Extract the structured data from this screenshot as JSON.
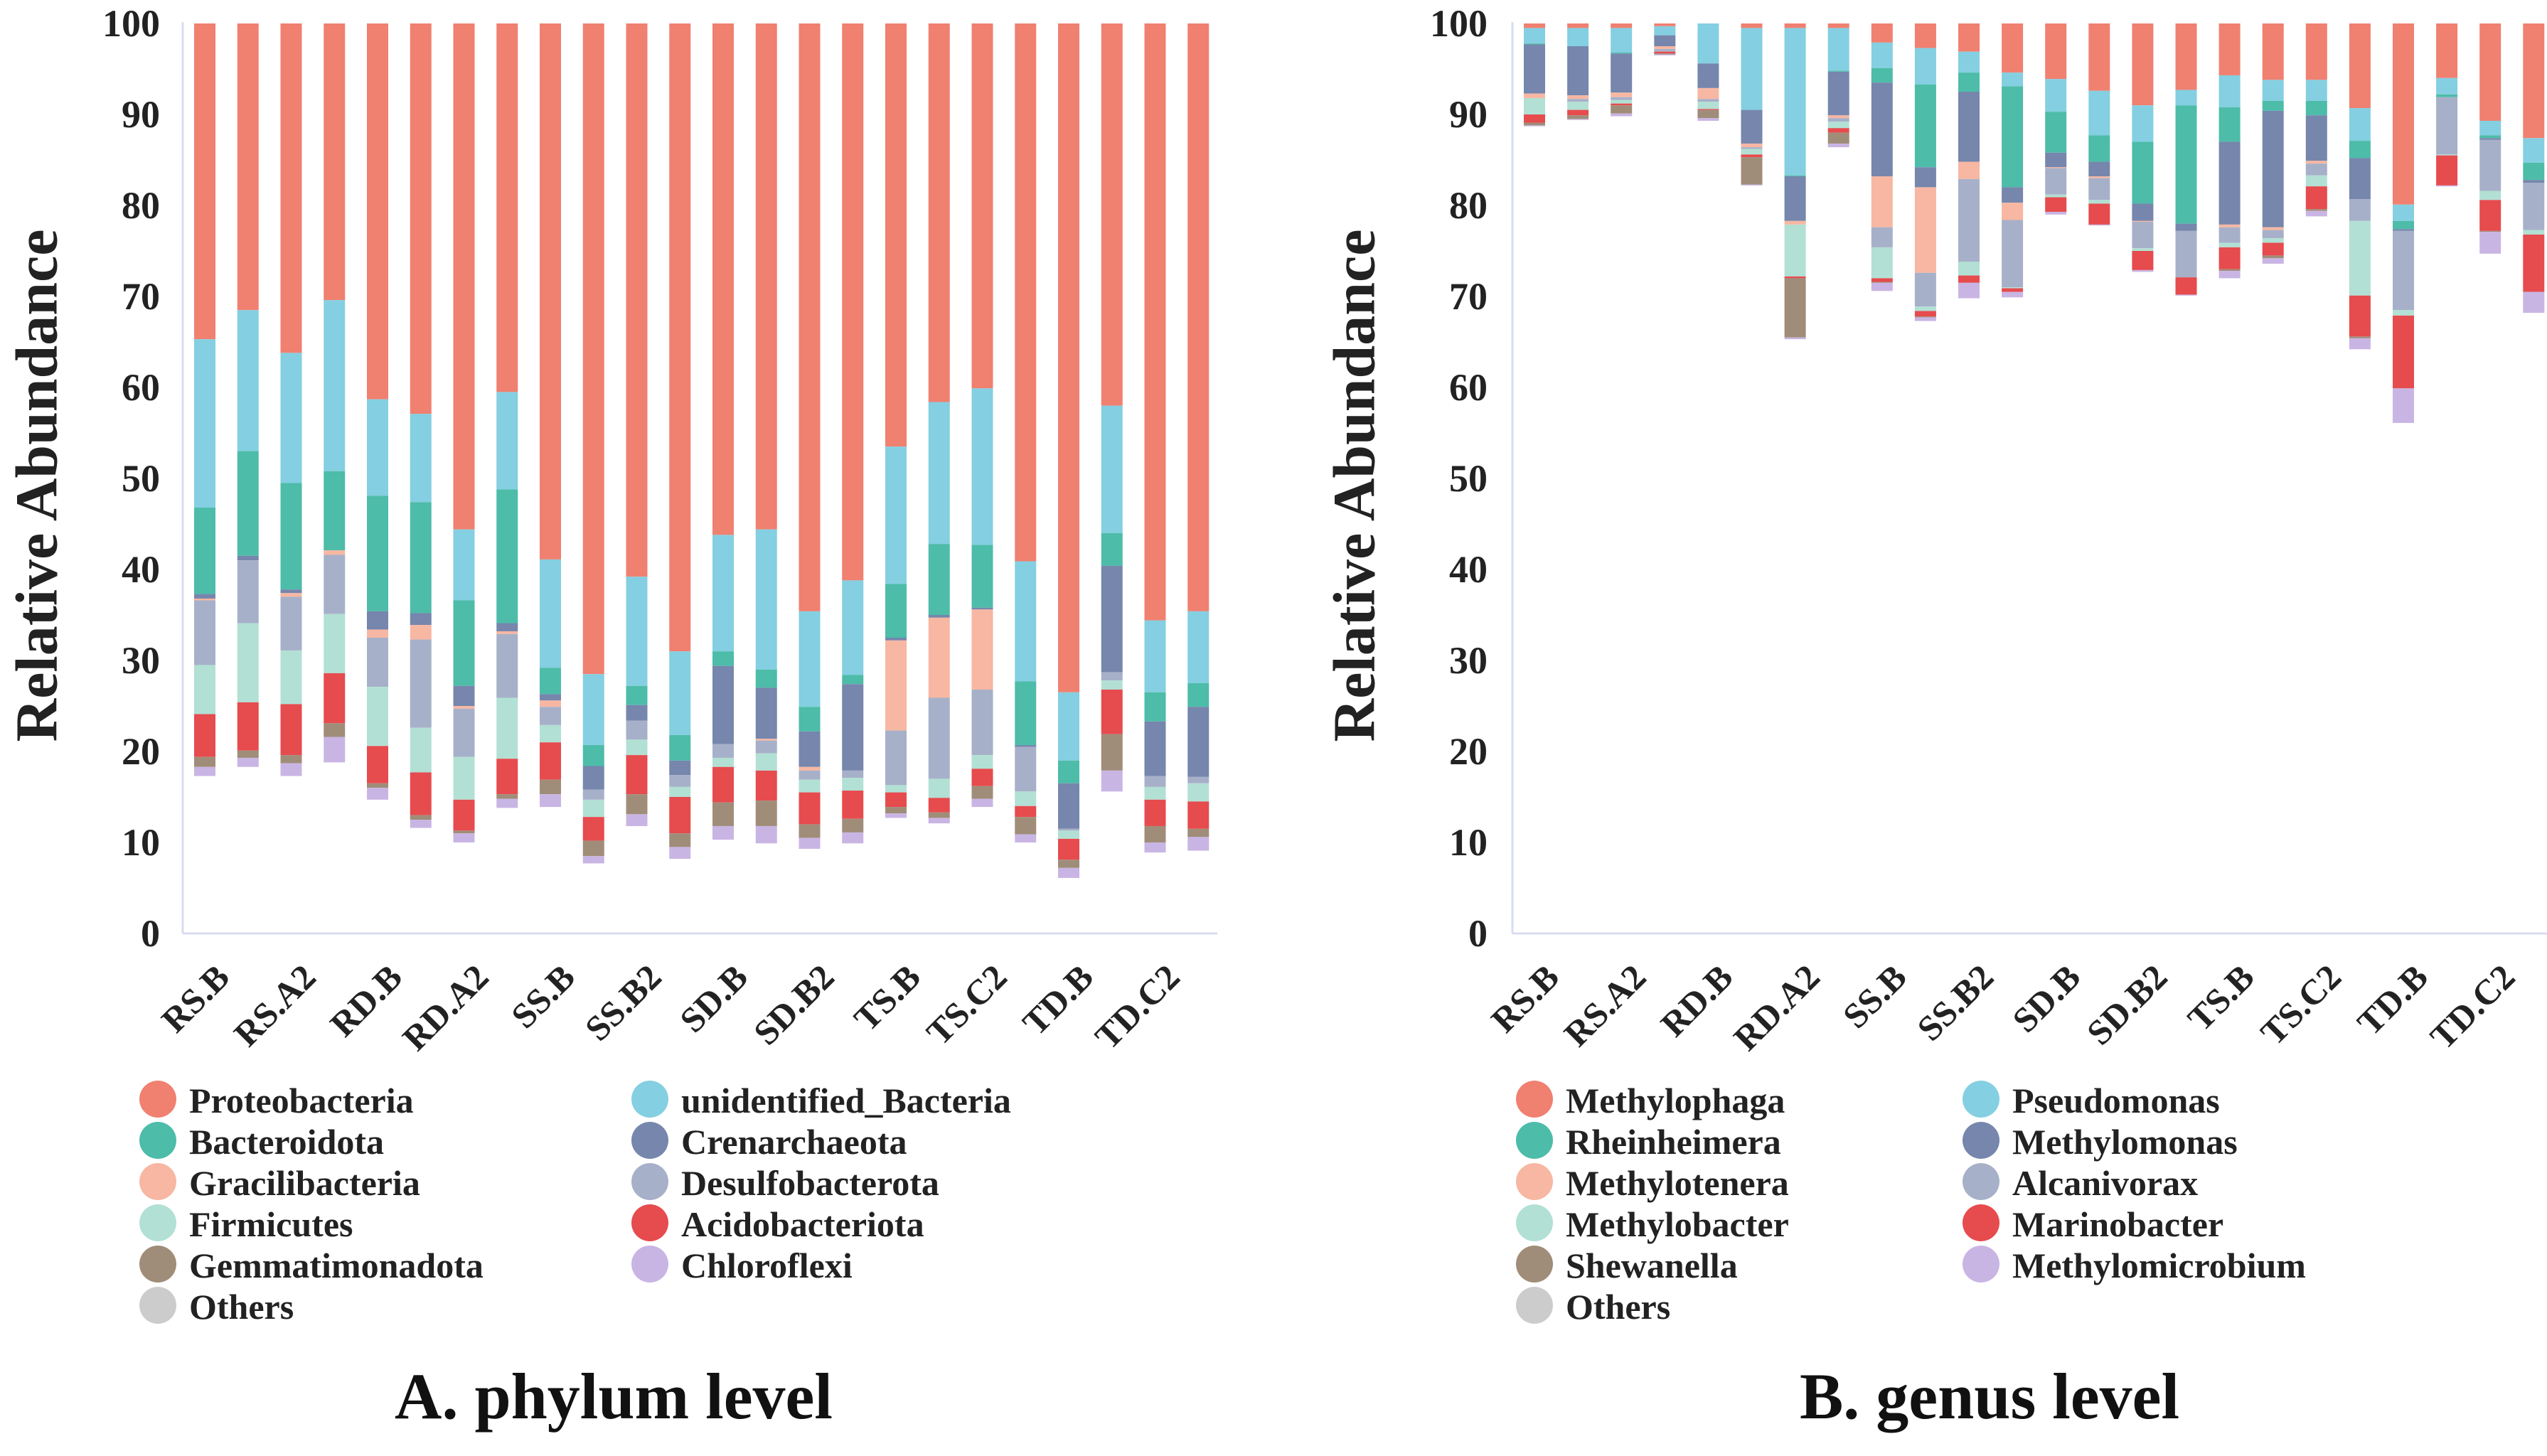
{
  "chart_data": [
    {
      "type": "bar",
      "stacked": true,
      "title": "A. phylum level",
      "ylabel": "Relative Abundance",
      "ylim": [
        0,
        100
      ],
      "yticks": [
        0,
        10,
        20,
        30,
        40,
        50,
        60,
        70,
        80,
        90,
        100
      ],
      "x_labels": [
        "RS.B",
        "RS.A2",
        "RD.B",
        "RD.A2",
        "SS.B",
        "SS.B2",
        "SD.B",
        "SD.B2",
        "TS.B",
        "TS.C2",
        "TD.B",
        "TD.C2"
      ],
      "bar_count": 24,
      "legend_columns": [
        [
          "Proteobacteria",
          "Bacteroidota",
          "Gracilibacteria",
          "Firmicutes",
          "Gemmatimonadota",
          "Others"
        ],
        [
          "unidentified_Bacteria",
          "Crenarchaeota",
          "Desulfobacterota",
          "Acidobacteriota",
          "Chloroflexi"
        ]
      ],
      "series": [
        {
          "name": "Proteobacteria",
          "color": "#F08070",
          "values": [
            34.7,
            31.5,
            36.2,
            30.4,
            41.3,
            42.9,
            55.6,
            40.5,
            58.9,
            71.5,
            60.8,
            69.0,
            56.2,
            55.6,
            64.6,
            61.2,
            46.5,
            41.6,
            40.1,
            59.1,
            73.5,
            42.0,
            65.6,
            64.6
          ]
        },
        {
          "name": "unidentified_Bacteria",
          "color": "#84CFE1",
          "values": [
            18.5,
            15.5,
            14.3,
            18.8,
            10.6,
            9.7,
            7.8,
            10.7,
            11.9,
            7.8,
            12.0,
            9.2,
            12.8,
            15.4,
            10.5,
            10.4,
            15.1,
            15.6,
            17.2,
            13.2,
            7.5,
            14.0,
            7.9,
            7.9
          ]
        },
        {
          "name": "Bacteroidota",
          "color": "#4DBCA9",
          "values": [
            9.5,
            11.5,
            11.7,
            8.7,
            12.7,
            12.2,
            9.4,
            14.7,
            2.9,
            2.3,
            2.1,
            2.8,
            1.6,
            2.0,
            2.7,
            1.0,
            5.9,
            7.8,
            6.9,
            7.0,
            2.5,
            3.6,
            3.2,
            2.6
          ]
        },
        {
          "name": "Crenarchaeota",
          "color": "#7686AC",
          "values": [
            0.5,
            0.5,
            0.4,
            0,
            2.0,
            1.3,
            2.2,
            0.9,
            0.7,
            2.6,
            1.7,
            1.6,
            8.6,
            5.6,
            3.9,
            9.5,
            0.3,
            0.3,
            0.2,
            0.2,
            5.0,
            11.7,
            6.0,
            7.7
          ]
        },
        {
          "name": "Gracilibacteria",
          "color": "#F7B7A2",
          "values": [
            0.2,
            0,
            0.4,
            0.5,
            0.9,
            1.6,
            0.3,
            0.3,
            0.7,
            0,
            0,
            0,
            0,
            0.2,
            0.4,
            0,
            9.9,
            8.8,
            8.8,
            0,
            0,
            0,
            0,
            0
          ]
        },
        {
          "name": "Desulfobacterota",
          "color": "#A7B0C9",
          "values": [
            7.1,
            6.9,
            5.9,
            6.5,
            5.4,
            9.7,
            5.3,
            7.0,
            2.0,
            1.1,
            2.1,
            1.3,
            1.5,
            1.4,
            1.0,
            0.8,
            6.0,
            8.9,
            7.2,
            4.9,
            0.2,
            0.9,
            1.2,
            0.7
          ]
        },
        {
          "name": "Firmicutes",
          "color": "#B2E0D4",
          "values": [
            5.4,
            8.7,
            5.9,
            6.5,
            6.5,
            4.9,
            4.7,
            6.7,
            1.9,
            1.9,
            1.7,
            1.1,
            1.0,
            1.9,
            1.4,
            1.4,
            0.8,
            2.1,
            1.5,
            1.6,
            0.9,
            1.0,
            1.4,
            2.0
          ]
        },
        {
          "name": "Acidobacteriota",
          "color": "#E64B4E",
          "values": [
            4.7,
            5.3,
            5.6,
            5.5,
            4.1,
            4.7,
            3.4,
            3.9,
            4.1,
            2.6,
            4.3,
            4.0,
            3.9,
            3.3,
            3.5,
            3.1,
            1.6,
            1.6,
            1.9,
            1.2,
            2.3,
            4.9,
            2.9,
            3.0
          ]
        },
        {
          "name": "Gemmatimonadota",
          "color": "#A08D79",
          "values": [
            1.1,
            0.8,
            0.9,
            1.5,
            0.5,
            0.5,
            0.3,
            0.5,
            1.6,
            1.7,
            2.2,
            1.5,
            2.6,
            2.8,
            1.5,
            1.5,
            0.7,
            0.6,
            1.4,
            1.9,
            0.9,
            4.0,
            1.8,
            0.9
          ]
        },
        {
          "name": "Chloroflexi",
          "color": "#C9B5E4",
          "values": [
            1.0,
            1.0,
            1.4,
            2.8,
            1.3,
            0.9,
            1.0,
            1.0,
            1.4,
            0.8,
            1.3,
            1.3,
            1.5,
            1.9,
            1.2,
            1.2,
            0.5,
            0.6,
            0.9,
            0.9,
            1.1,
            2.3,
            1.1,
            1.5
          ]
        },
        {
          "name": "Others",
          "color": "#CCCCCC",
          "values": [
            17.3,
            18.3,
            17.3,
            18.8,
            14.7,
            11.6,
            10.0,
            13.8,
            13.7,
            7.7,
            11.8,
            8.2,
            10.3,
            9.9,
            9.3,
            9.9,
            12.6,
            12.0,
            13.3,
            10.2,
            6.1,
            15.5,
            8.9,
            9.6
          ]
        }
      ]
    },
    {
      "type": "bar",
      "stacked": true,
      "title": "B. genus level",
      "ylabel": "Relative Abundance",
      "ylim": [
        0,
        100
      ],
      "yticks": [
        0,
        10,
        20,
        30,
        40,
        50,
        60,
        70,
        80,
        90,
        100
      ],
      "x_labels": [
        "RS.B",
        "RS.A2",
        "RD.B",
        "RD.A2",
        "SS.B",
        "SS.B2",
        "SD.B",
        "SD.B2",
        "TS.B",
        "TS.C2",
        "TD.B",
        "TD.C2"
      ],
      "bar_count": 24,
      "legend_columns": [
        [
          "Methylophaga",
          "Rheinheimera",
          "Methylotenera",
          "Methylobacter",
          "Shewanella",
          "Others"
        ],
        [
          "Pseudomonas",
          "Methylomonas",
          "Alcanivorax",
          "Marinobacter",
          "Methylomicrobium"
        ]
      ],
      "series": [
        {
          "name": "Methylophaga",
          "color": "#F08070",
          "values": [
            0.5,
            0.5,
            0.5,
            0.3,
            0,
            0.5,
            0.5,
            0.5,
            2.1,
            2.7,
            3.1,
            5.4,
            6.1,
            7.4,
            9.0,
            7.3,
            5.7,
            6.2,
            6.2,
            9.3,
            19.9,
            6.0,
            10.7,
            12.6
          ]
        },
        {
          "name": "Pseudomonas",
          "color": "#84CFE1",
          "values": [
            1.7,
            2.0,
            2.7,
            1.0,
            4.4,
            9.0,
            16.2,
            4.7,
            2.8,
            4.0,
            2.3,
            1.5,
            3.6,
            4.9,
            4.0,
            1.7,
            3.5,
            2.3,
            2.3,
            3.6,
            1.8,
            1.8,
            1.6,
            2.7
          ]
        },
        {
          "name": "Rheinheimera",
          "color": "#4DBCA9",
          "values": [
            0.1,
            0,
            0.1,
            0,
            0,
            0,
            0.1,
            0.1,
            1.6,
            9.1,
            2.1,
            11.1,
            4.5,
            2.9,
            6.8,
            13.0,
            3.8,
            1.1,
            1.6,
            1.9,
            0.9,
            0.3,
            0.3,
            1.9
          ]
        },
        {
          "name": "Methylomonas",
          "color": "#7686AC",
          "values": [
            5.4,
            5.4,
            4.3,
            1.2,
            2.7,
            3.7,
            4.9,
            4.8,
            10.3,
            2.2,
            7.7,
            1.7,
            1.6,
            1.6,
            1.9,
            0.8,
            9.1,
            12.8,
            5.0,
            4.5,
            0.2,
            0,
            0.2,
            0.3
          ]
        },
        {
          "name": "Methylotenera",
          "color": "#F7B7A2",
          "values": [
            0.5,
            0.4,
            0.5,
            0.3,
            1.2,
            0.4,
            0.4,
            0.3,
            5.6,
            9.4,
            1.9,
            1.9,
            0.1,
            0.2,
            0.1,
            0,
            0.3,
            0.3,
            0.3,
            0,
            0,
            0,
            0,
            0
          ]
        },
        {
          "name": "Alcanivorax",
          "color": "#A7B0C9",
          "values": [
            0,
            0.3,
            0.3,
            0.3,
            0.3,
            0.2,
            0,
            0.4,
            2.2,
            3.7,
            9.1,
            7.4,
            2.9,
            2.4,
            2.9,
            5.1,
            1.7,
            0.9,
            1.3,
            2.4,
            8.7,
            6.3,
            5.6,
            5.2
          ]
        },
        {
          "name": "Methylobacter",
          "color": "#B2E0D4",
          "values": [
            1.8,
            0.9,
            0.4,
            0,
            0.8,
            0.6,
            5.7,
            0.7,
            3.4,
            0.5,
            1.5,
            0.1,
            0.3,
            0.4,
            0.3,
            0,
            0.5,
            0.5,
            1.2,
            8.2,
            0.6,
            0.1,
            1.0,
            0.5
          ]
        },
        {
          "name": "Marinobacter",
          "color": "#E64B4E",
          "values": [
            0.9,
            0.6,
            0.2,
            0.2,
            0.1,
            0.3,
            0.2,
            0.5,
            0.4,
            0.6,
            0.8,
            0.4,
            1.6,
            2.3,
            2.1,
            1.9,
            2.4,
            1.4,
            2.5,
            4.5,
            8.0,
            3.3,
            3.4,
            6.3
          ]
        },
        {
          "name": "Shewanella",
          "color": "#A08D79",
          "values": [
            0.3,
            0.4,
            0.9,
            0.1,
            0.9,
            3.0,
            6.5,
            1.2,
            0.1,
            0.1,
            0,
            0,
            0,
            0,
            0,
            0,
            0.2,
            0.3,
            0.2,
            0.2,
            0,
            0,
            0.1,
            0
          ]
        },
        {
          "name": "Methylomicrobium",
          "color": "#C9B5E4",
          "values": [
            0.1,
            0.1,
            0.3,
            0.1,
            0.3,
            0.1,
            0.2,
            0.4,
            0.9,
            0.4,
            1.7,
            0.6,
            0.3,
            0.1,
            0.2,
            0.1,
            0.8,
            0.6,
            0.6,
            1.2,
            3.8,
            0.1,
            2.4,
            2.3
          ]
        },
        {
          "name": "Others",
          "color": "#CCCCCC",
          "values": [
            88.7,
            89.4,
            89.8,
            96.5,
            89.3,
            82.2,
            65.3,
            86.4,
            70.6,
            67.3,
            69.8,
            70.0,
            79.0,
            77.8,
            72.7,
            70.1,
            72.0,
            73.6,
            78.8,
            64.2,
            56.1,
            82.1,
            74.7,
            68.2
          ]
        }
      ]
    }
  ]
}
